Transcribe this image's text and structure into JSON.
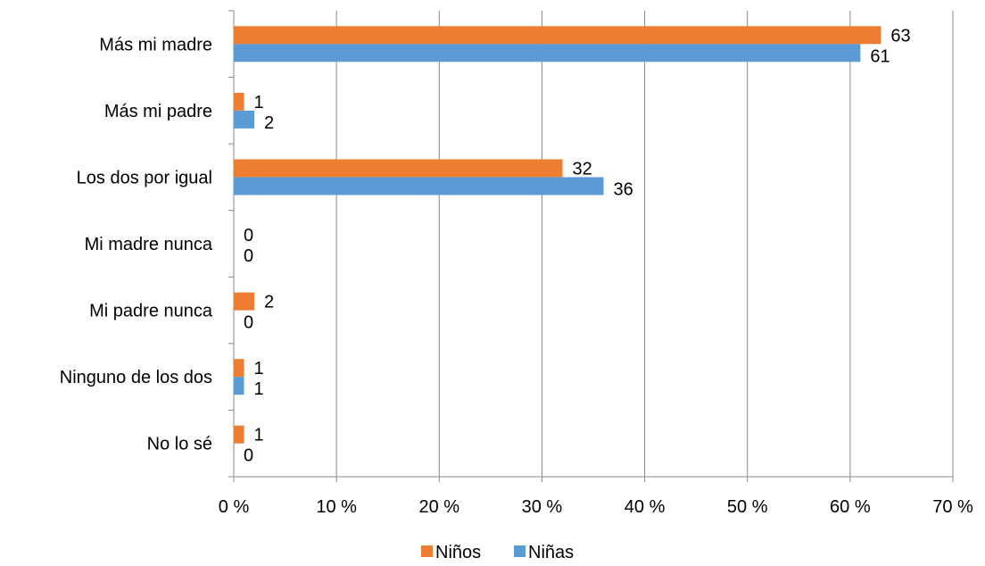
{
  "chart_data": {
    "type": "bar",
    "orientation": "horizontal",
    "categories": [
      "Más mi madre",
      "Más mi padre",
      "Los dos por igual",
      "Mi madre nunca",
      "Mi padre nunca",
      "Ninguno de los dos",
      "No lo sé"
    ],
    "series": [
      {
        "name": "Niños",
        "color": "#ED7D31",
        "values": [
          63,
          1,
          32,
          0,
          2,
          1,
          1
        ],
        "labels": [
          "63",
          "1",
          "32",
          "0",
          "2",
          "1",
          "1"
        ]
      },
      {
        "name": "Niñas",
        "color": "#5B9BD5",
        "values": [
          61,
          2,
          36,
          0,
          0,
          1,
          0
        ],
        "labels": [
          "61",
          "2",
          "36",
          "0",
          "0",
          "1",
          "0"
        ]
      }
    ],
    "xlim": [
      0,
      70
    ],
    "xticks": [
      "0 %",
      "10 %",
      "20 %",
      "30 %",
      "40 %",
      "50 %",
      "60 %",
      "70 %"
    ],
    "grid": true,
    "legend_position": "bottom"
  }
}
